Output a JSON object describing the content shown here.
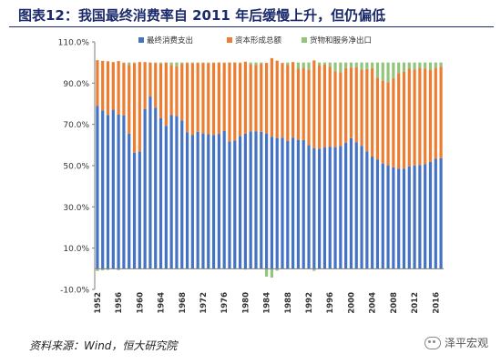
{
  "figure": {
    "title": "图表12：我国最终消费率自 2011 年后缓慢上升，但仍偏低",
    "source": "资料来源：Wind，恒大研究院",
    "watermark": "泽平宏观",
    "watermark_icon": "wechat-icon"
  },
  "chart_data": {
    "type": "bar",
    "stacked": true,
    "title": "",
    "xlabel": "",
    "ylabel": "",
    "ylim": [
      -10,
      110
    ],
    "yticks": [
      "-10.0%",
      "10.0%",
      "30.0%",
      "50.0%",
      "70.0%",
      "90.0%",
      "110.0%"
    ],
    "grid": false,
    "legend_position": "top",
    "categories": [
      1952,
      1953,
      1954,
      1955,
      1956,
      1957,
      1958,
      1959,
      1960,
      1961,
      1962,
      1963,
      1964,
      1965,
      1966,
      1967,
      1968,
      1969,
      1970,
      1971,
      1972,
      1973,
      1974,
      1975,
      1976,
      1977,
      1978,
      1979,
      1980,
      1981,
      1982,
      1983,
      1984,
      1985,
      1986,
      1987,
      1988,
      1989,
      1990,
      1991,
      1992,
      1993,
      1994,
      1995,
      1996,
      1997,
      1998,
      1999,
      2000,
      2001,
      2002,
      2003,
      2004,
      2005,
      2006,
      2007,
      2008,
      2009,
      2010,
      2011,
      2012,
      2013,
      2014,
      2015,
      2016,
      2017
    ],
    "x_tick_labels": [
      "1952",
      "1956",
      "1960",
      "1964",
      "1968",
      "1972",
      "1976",
      "1980",
      "1984",
      "1988",
      "1992",
      "1996",
      "2000",
      "2004",
      "2008",
      "2012",
      "2016"
    ],
    "series": [
      {
        "name": "最终消费支出",
        "color": "#4472c4",
        "values": [
          78.9,
          76.8,
          74.6,
          77.1,
          74.7,
          74.4,
          65.5,
          56.3,
          56.8,
          77.5,
          83.5,
          78.1,
          73.0,
          69.3,
          74.5,
          74.1,
          71.9,
          66.2,
          64.8,
          66.4,
          65.6,
          65.2,
          64.9,
          65.4,
          66.9,
          61.8,
          62.1,
          64.3,
          65.5,
          66.6,
          66.7,
          66.4,
          65.6,
          64.0,
          63.4,
          63.5,
          61.9,
          63.6,
          62.5,
          62.4,
          59.9,
          58.4,
          58.2,
          58.8,
          59.2,
          59.0,
          59.6,
          61.1,
          63.3,
          61.4,
          59.6,
          56.9,
          54.4,
          53.0,
          51.0,
          50.0,
          49.2,
          48.5,
          48.5,
          49.6,
          50.1,
          50.3,
          50.7,
          51.8,
          53.3,
          53.6
        ]
      },
      {
        "name": "资本形成总额",
        "color": "#ed7d31",
        "values": [
          22.2,
          24.0,
          26.0,
          23.1,
          26.0,
          25.4,
          33.3,
          43.4,
          43.4,
          22.7,
          16.4,
          21.7,
          26.5,
          30.6,
          24.2,
          24.0,
          27.5,
          33.6,
          34.9,
          33.4,
          34.2,
          34.5,
          34.9,
          34.6,
          32.9,
          38.2,
          37.9,
          35.4,
          34.9,
          32.4,
          32.1,
          33.0,
          34.2,
          38.1,
          37.5,
          36.3,
          37.0,
          36.6,
          34.5,
          34.8,
          36.6,
          42.6,
          40.5,
          40.3,
          38.8,
          36.7,
          35.7,
          36.2,
          34.3,
          36.3,
          37.0,
          39.9,
          42.9,
          39.6,
          40.2,
          40.5,
          43.2,
          46.3,
          47.0,
          47.4,
          46.5,
          47.1,
          46.4,
          44.7,
          44.1,
          44.4
        ]
      },
      {
        "name": "货物和服务净出口",
        "color": "#92c47c",
        "values": [
          -1.1,
          -0.8,
          -0.6,
          -0.2,
          -0.7,
          0.2,
          1.2,
          0.3,
          -0.2,
          -0.2,
          0.1,
          0.2,
          0.5,
          0.1,
          1.3,
          1.9,
          0.6,
          0.2,
          0.3,
          0.2,
          0.2,
          0.3,
          0.2,
          0.0,
          0.2,
          0.0,
          0.0,
          0.3,
          -0.4,
          1.0,
          1.2,
          0.6,
          -3.8,
          -4.3,
          -0.9,
          -0.2,
          1.1,
          -0.2,
          3.0,
          2.8,
          3.5,
          -1.0,
          1.3,
          0.9,
          2.0,
          4.3,
          4.7,
          2.7,
          2.4,
          2.3,
          3.4,
          3.2,
          2.7,
          7.4,
          8.8,
          9.5,
          7.6,
          5.2,
          4.5,
          3.0,
          3.4,
          2.6,
          2.9,
          3.5,
          2.6,
          2.0
        ]
      }
    ]
  }
}
